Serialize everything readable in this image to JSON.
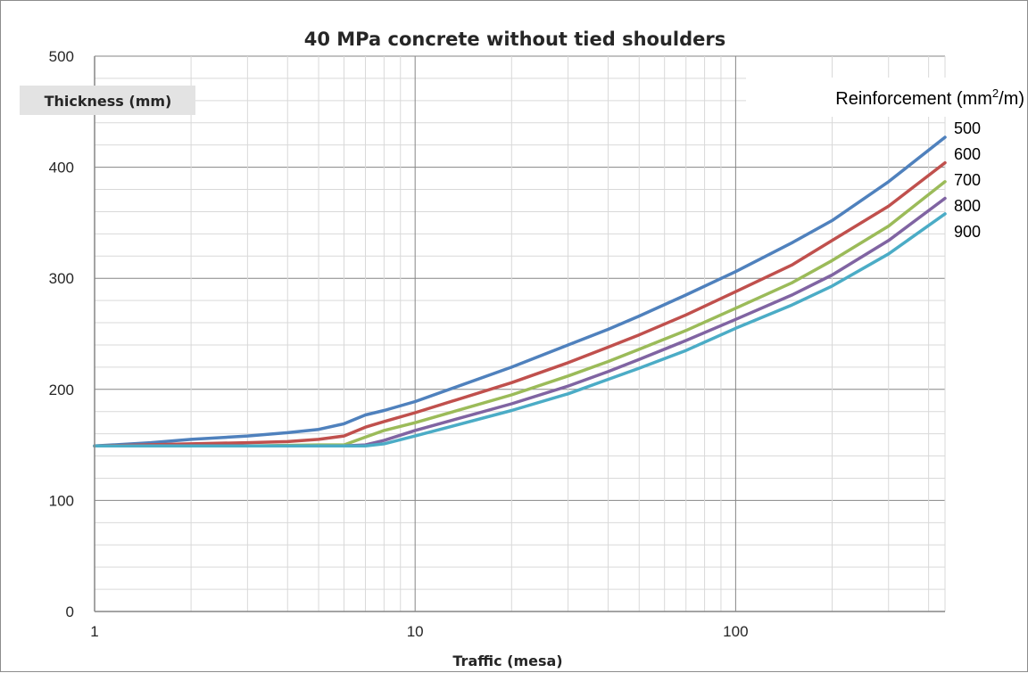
{
  "chart_data": {
    "type": "line",
    "title": "40 MPa concrete without tied shoulders",
    "ylabel": "Thickness (mm)",
    "xlabel": "Traffic (mesa)",
    "x_scale": "log",
    "xlim": [
      1,
      450
    ],
    "ylim": [
      0,
      500
    ],
    "x_ticks": [
      "1",
      "10",
      "100"
    ],
    "y_ticks": [
      "0",
      "100",
      "200",
      "300",
      "400",
      "500"
    ],
    "grid": true,
    "legend_title": {
      "main": "Reinforcement (mm",
      "sup": "2",
      "tail": "/m)"
    },
    "legend_position": "right",
    "series": [
      {
        "name": "500",
        "color": "#4f81bd",
        "points": [
          [
            1,
            149
          ],
          [
            1.5,
            152
          ],
          [
            2,
            155
          ],
          [
            3,
            158
          ],
          [
            4,
            161
          ],
          [
            5,
            164
          ],
          [
            6,
            169
          ],
          [
            7,
            177
          ],
          [
            8,
            181
          ],
          [
            10,
            189
          ],
          [
            20,
            220
          ],
          [
            30,
            240
          ],
          [
            40,
            254
          ],
          [
            50,
            266
          ],
          [
            70,
            285
          ],
          [
            100,
            306
          ],
          [
            150,
            332
          ],
          [
            200,
            352
          ],
          [
            300,
            387
          ],
          [
            450,
            427
          ]
        ]
      },
      {
        "name": "600",
        "color": "#c0504d",
        "points": [
          [
            1,
            149
          ],
          [
            2,
            151
          ],
          [
            3,
            152
          ],
          [
            4,
            153
          ],
          [
            5,
            155
          ],
          [
            6,
            158
          ],
          [
            7,
            166
          ],
          [
            8,
            171
          ],
          [
            10,
            179
          ],
          [
            20,
            206
          ],
          [
            30,
            224
          ],
          [
            40,
            238
          ],
          [
            50,
            249
          ],
          [
            70,
            267
          ],
          [
            100,
            288
          ],
          [
            150,
            312
          ],
          [
            200,
            334
          ],
          [
            300,
            365
          ],
          [
            450,
            404
          ]
        ]
      },
      {
        "name": "700",
        "color": "#9bbb59",
        "points": [
          [
            1,
            149
          ],
          [
            3,
            149
          ],
          [
            5,
            150
          ],
          [
            6,
            150
          ],
          [
            7,
            157
          ],
          [
            8,
            163
          ],
          [
            10,
            170
          ],
          [
            20,
            195
          ],
          [
            30,
            212
          ],
          [
            40,
            225
          ],
          [
            50,
            236
          ],
          [
            70,
            253
          ],
          [
            100,
            273
          ],
          [
            150,
            296
          ],
          [
            200,
            316
          ],
          [
            300,
            347
          ],
          [
            450,
            387
          ]
        ]
      },
      {
        "name": "800",
        "color": "#8064a2",
        "points": [
          [
            1,
            149
          ],
          [
            3,
            149
          ],
          [
            5,
            149
          ],
          [
            6,
            149
          ],
          [
            7,
            150
          ],
          [
            8,
            154
          ],
          [
            10,
            163
          ],
          [
            20,
            187
          ],
          [
            30,
            203
          ],
          [
            40,
            216
          ],
          [
            50,
            227
          ],
          [
            70,
            244
          ],
          [
            100,
            263
          ],
          [
            150,
            285
          ],
          [
            200,
            303
          ],
          [
            300,
            334
          ],
          [
            450,
            372
          ]
        ]
      },
      {
        "name": "900",
        "color": "#4bacc6",
        "points": [
          [
            1,
            149
          ],
          [
            3,
            149
          ],
          [
            5,
            149
          ],
          [
            7,
            149
          ],
          [
            8,
            151
          ],
          [
            10,
            158
          ],
          [
            20,
            181
          ],
          [
            30,
            196
          ],
          [
            40,
            209
          ],
          [
            50,
            219
          ],
          [
            70,
            235
          ],
          [
            100,
            255
          ],
          [
            150,
            276
          ],
          [
            200,
            293
          ],
          [
            300,
            322
          ],
          [
            450,
            358
          ]
        ]
      }
    ]
  },
  "colors": {
    "grid_major": "#868686",
    "grid_minor": "#d9d9d9",
    "axis": "#868686",
    "ylabel_background": "#e3e3e3"
  }
}
